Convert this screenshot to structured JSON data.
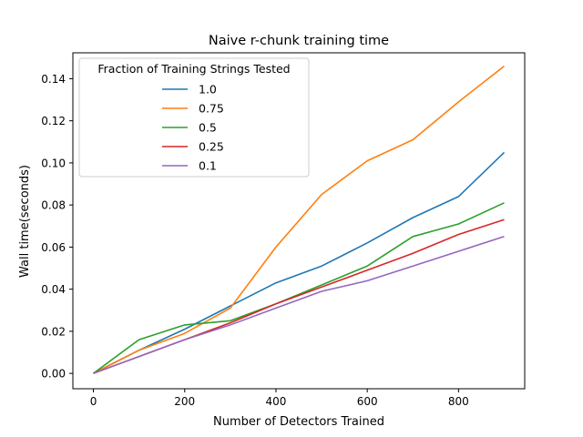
{
  "chart_data": {
    "type": "line",
    "title": "Naive r-chunk training time",
    "xlabel": "Number of Detectors Trained",
    "ylabel": "Wall time(seconds)",
    "xlim": [
      -45,
      945
    ],
    "ylim": [
      -0.0073,
      0.1523
    ],
    "xticks": [
      0,
      200,
      400,
      600,
      800
    ],
    "xtick_labels": [
      "0",
      "200",
      "400",
      "600",
      "800"
    ],
    "yticks": [
      0.0,
      0.02,
      0.04,
      0.06,
      0.08,
      0.1,
      0.12,
      0.14
    ],
    "ytick_labels": [
      "0.00",
      "0.02",
      "0.04",
      "0.06",
      "0.08",
      "0.10",
      "0.12",
      "0.14"
    ],
    "grid": false,
    "legend": {
      "title": "Fraction of Training Strings Tested",
      "placement": "upper-left"
    },
    "x": [
      0,
      100,
      200,
      300,
      400,
      500,
      600,
      700,
      800,
      900
    ],
    "series": [
      {
        "name": "1.0",
        "color": "#1f77b4",
        "values": [
          0.0,
          0.011,
          0.021,
          0.032,
          0.043,
          0.051,
          0.062,
          0.074,
          0.084,
          0.105
        ]
      },
      {
        "name": "0.75",
        "color": "#ff7f0e",
        "values": [
          0.0,
          0.011,
          0.019,
          0.031,
          0.06,
          0.085,
          0.101,
          0.111,
          0.129,
          0.146
        ]
      },
      {
        "name": "0.5",
        "color": "#2ca02c",
        "values": [
          0.0,
          0.016,
          0.023,
          0.025,
          0.033,
          0.042,
          0.051,
          0.065,
          0.071,
          0.081
        ]
      },
      {
        "name": "0.25",
        "color": "#d62728",
        "values": [
          0.0,
          0.008,
          0.016,
          0.024,
          0.033,
          0.041,
          0.049,
          0.057,
          0.066,
          0.073
        ]
      },
      {
        "name": "0.1",
        "color": "#9467bd",
        "values": [
          0.0,
          0.008,
          0.016,
          0.023,
          0.031,
          0.039,
          0.044,
          0.051,
          0.058,
          0.065
        ]
      }
    ]
  }
}
